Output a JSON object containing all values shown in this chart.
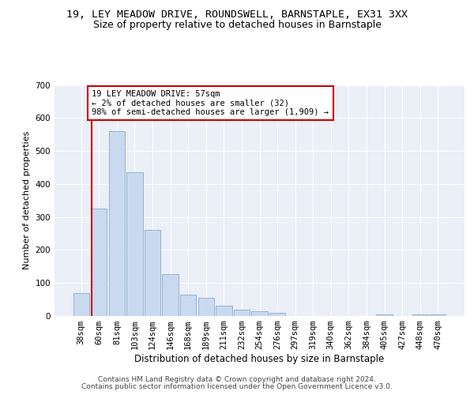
{
  "title1": "19, LEY MEADOW DRIVE, ROUNDSWELL, BARNSTAPLE, EX31 3XX",
  "title2": "Size of property relative to detached houses in Barnstaple",
  "xlabel": "Distribution of detached houses by size in Barnstaple",
  "ylabel": "Number of detached properties",
  "categories": [
    "38sqm",
    "60sqm",
    "81sqm",
    "103sqm",
    "124sqm",
    "146sqm",
    "168sqm",
    "189sqm",
    "211sqm",
    "232sqm",
    "254sqm",
    "276sqm",
    "297sqm",
    "319sqm",
    "340sqm",
    "362sqm",
    "384sqm",
    "405sqm",
    "427sqm",
    "448sqm",
    "470sqm"
  ],
  "values": [
    70,
    325,
    560,
    435,
    260,
    128,
    65,
    55,
    30,
    20,
    15,
    10,
    0,
    0,
    0,
    0,
    0,
    5,
    0,
    5,
    5
  ],
  "bar_color": "#c9d9f0",
  "bar_edge_color": "#7a9fc5",
  "annotation_box_text": "19 LEY MEADOW DRIVE: 57sqm\n← 2% of detached houses are smaller (32)\n98% of semi-detached houses are larger (1,909) →",
  "ylim": [
    0,
    700
  ],
  "yticks": [
    0,
    100,
    200,
    300,
    400,
    500,
    600,
    700
  ],
  "background_color": "#eaeff8",
  "grid_color": "#ffffff",
  "footer1": "Contains HM Land Registry data © Crown copyright and database right 2024.",
  "footer2": "Contains public sector information licensed under the Open Government Licence v3.0.",
  "red_line_color": "#cc0000",
  "annotation_box_facecolor": "#ffffff",
  "annotation_box_edgecolor": "#cc0000",
  "title1_fontsize": 9.5,
  "title2_fontsize": 9,
  "xlabel_fontsize": 8.5,
  "ylabel_fontsize": 8,
  "footer_fontsize": 6.5,
  "tick_fontsize": 7.5,
  "annot_fontsize": 7.5
}
